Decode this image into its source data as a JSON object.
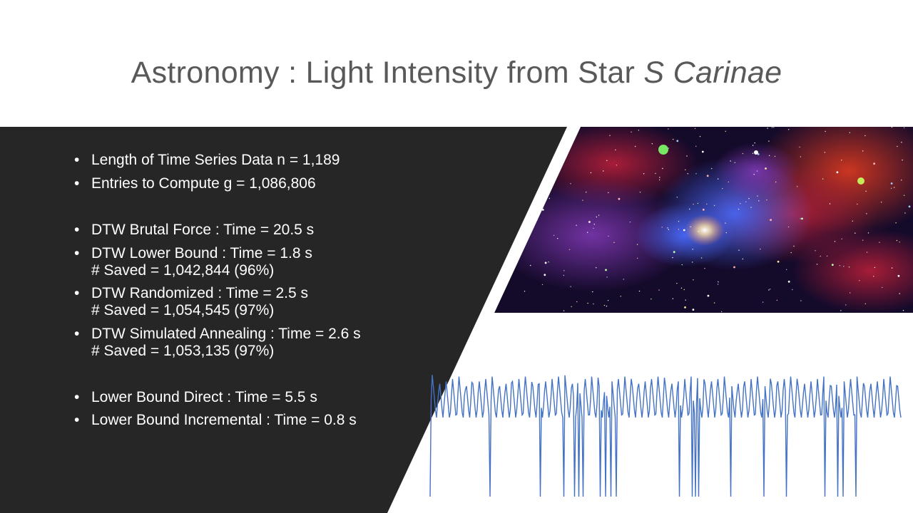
{
  "slide": {
    "title_main": "Astronomy : Light Intensity from Star ",
    "title_italic": "S Carinae"
  },
  "bullets": [
    {
      "text": "Length of Time Series Data n = 1,189",
      "sub": ""
    },
    {
      "text": "Entries to Compute g = 1,086,806",
      "sub": ""
    },
    {
      "text": "DTW Brutal Force : Time = 20.5 s",
      "sub": ""
    },
    {
      "text": "DTW Lower Bound : Time = 1.8 s",
      "sub": "# Saved = 1,042,844 (96%)"
    },
    {
      "text": "DTW Randomized : Time  = 2.5 s",
      "sub": "# Saved = 1,054,545 (97%)"
    },
    {
      "text": "DTW Simulated Annealing : Time  = 2.6 s",
      "sub": "# Saved = 1,053,135 (97%)"
    },
    {
      "text": "Lower Bound Direct : Time = 5.5 s",
      "sub": ""
    },
    {
      "text": "Lower Bound Incremental : Time = 0.8 s",
      "sub": ""
    }
  ],
  "colors": {
    "panel": "#262626",
    "text": "#ffffff",
    "title": "#595959",
    "series": "#4472c4"
  },
  "images": {
    "nebula": "nebula-photo"
  }
}
